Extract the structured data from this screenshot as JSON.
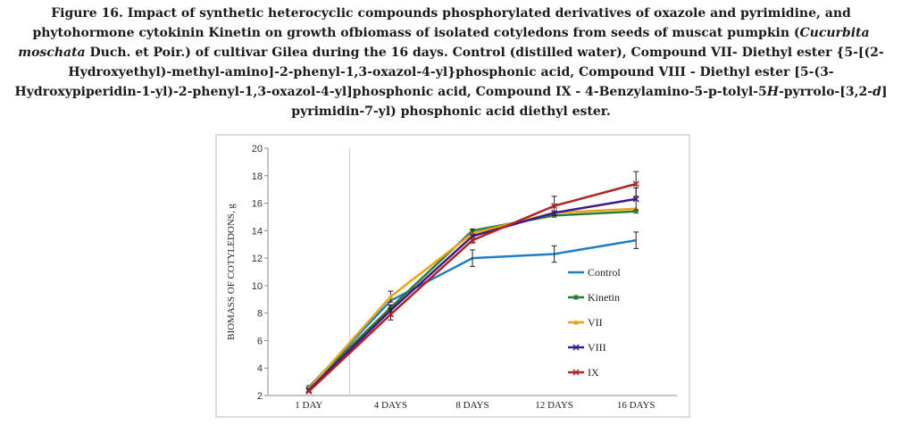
{
  "caption": {
    "p1": "Figure 16. Impact of synthetic heterocyclic compounds phosphorylated derivatives of oxazole and pyrimidine, and phytohormone cytokinin Kinetin on growth ofbiomass of isolated cotyledons from seeds of muscat pumpkin (",
    "species": "Cucurbita moschata",
    "p2": " Duch. et Poir.) of cultivar Gilea during the 16 days. Control (distilled water), Compound VII- Diethyl ester {5-[(2-Hydroxyethyl)-methyl-amino]-2-phenyl-1,3-oxazol-4-yl}phosphonic acid, Compound VIII - Diethyl ester [5-(3-Hydroxypiperidin-1-yl)-2-phenyl-1,3-oxazol-4-yl]phosphonic acid, Compound IX - 4-Benzylamino-5-p-tolyl-5",
    "h": "H",
    "p3": "-pyrrolo-[3,2-",
    "d": "d",
    "p4": "] pyrimidin-7-yl) phosphonic acid diethyl ester."
  },
  "chart_data": {
    "type": "line",
    "categories": [
      "1 DAY",
      "4 DAYS",
      "8 DAYS",
      "12 DAYS",
      "16 DAYS"
    ],
    "ylabel": "BIOMASS OF COTYLEDONS, g",
    "xlabel": "",
    "ylim": [
      2,
      20
    ],
    "yticks": [
      2,
      4,
      6,
      8,
      10,
      12,
      14,
      16,
      18,
      20
    ],
    "grid": "vertical line after first category",
    "legend_position": "right",
    "series": [
      {
        "name": "Control",
        "color": "#1f7fc4",
        "marker": "none",
        "values": [
          2.6,
          8.9,
          12.0,
          12.3,
          13.3
        ],
        "errors": [
          0.2,
          0.4,
          0.6,
          0.6,
          0.6
        ],
        "error_bars": [
          false,
          false,
          true,
          true,
          true
        ]
      },
      {
        "name": "Kinetin",
        "color": "#2e7d32",
        "marker": "square",
        "values": [
          2.6,
          8.4,
          14.0,
          15.1,
          15.4
        ],
        "errors": [
          0.2,
          0.4,
          0.5,
          0.6,
          0.6
        ],
        "error_bars": [
          false,
          false,
          false,
          false,
          false
        ]
      },
      {
        "name": "VII",
        "color": "#e8a317",
        "marker": "triangle",
        "values": [
          2.5,
          9.2,
          13.8,
          15.3,
          15.6
        ],
        "errors": [
          0.2,
          0.4,
          0.5,
          0.6,
          0.7
        ],
        "error_bars": [
          false,
          true,
          false,
          false,
          false
        ]
      },
      {
        "name": "VIII",
        "color": "#3a1a8c",
        "marker": "x",
        "values": [
          2.4,
          8.2,
          13.6,
          15.3,
          16.3
        ],
        "errors": [
          0.2,
          0.4,
          0.5,
          0.7,
          0.8
        ],
        "error_bars": [
          false,
          true,
          true,
          false,
          true
        ]
      },
      {
        "name": "IX",
        "color": "#b22222",
        "marker": "x",
        "values": [
          2.3,
          7.9,
          13.3,
          15.8,
          17.4
        ],
        "errors": [
          0.2,
          0.4,
          0.5,
          0.7,
          0.9
        ],
        "error_bars": [
          false,
          true,
          false,
          true,
          true
        ]
      }
    ]
  }
}
